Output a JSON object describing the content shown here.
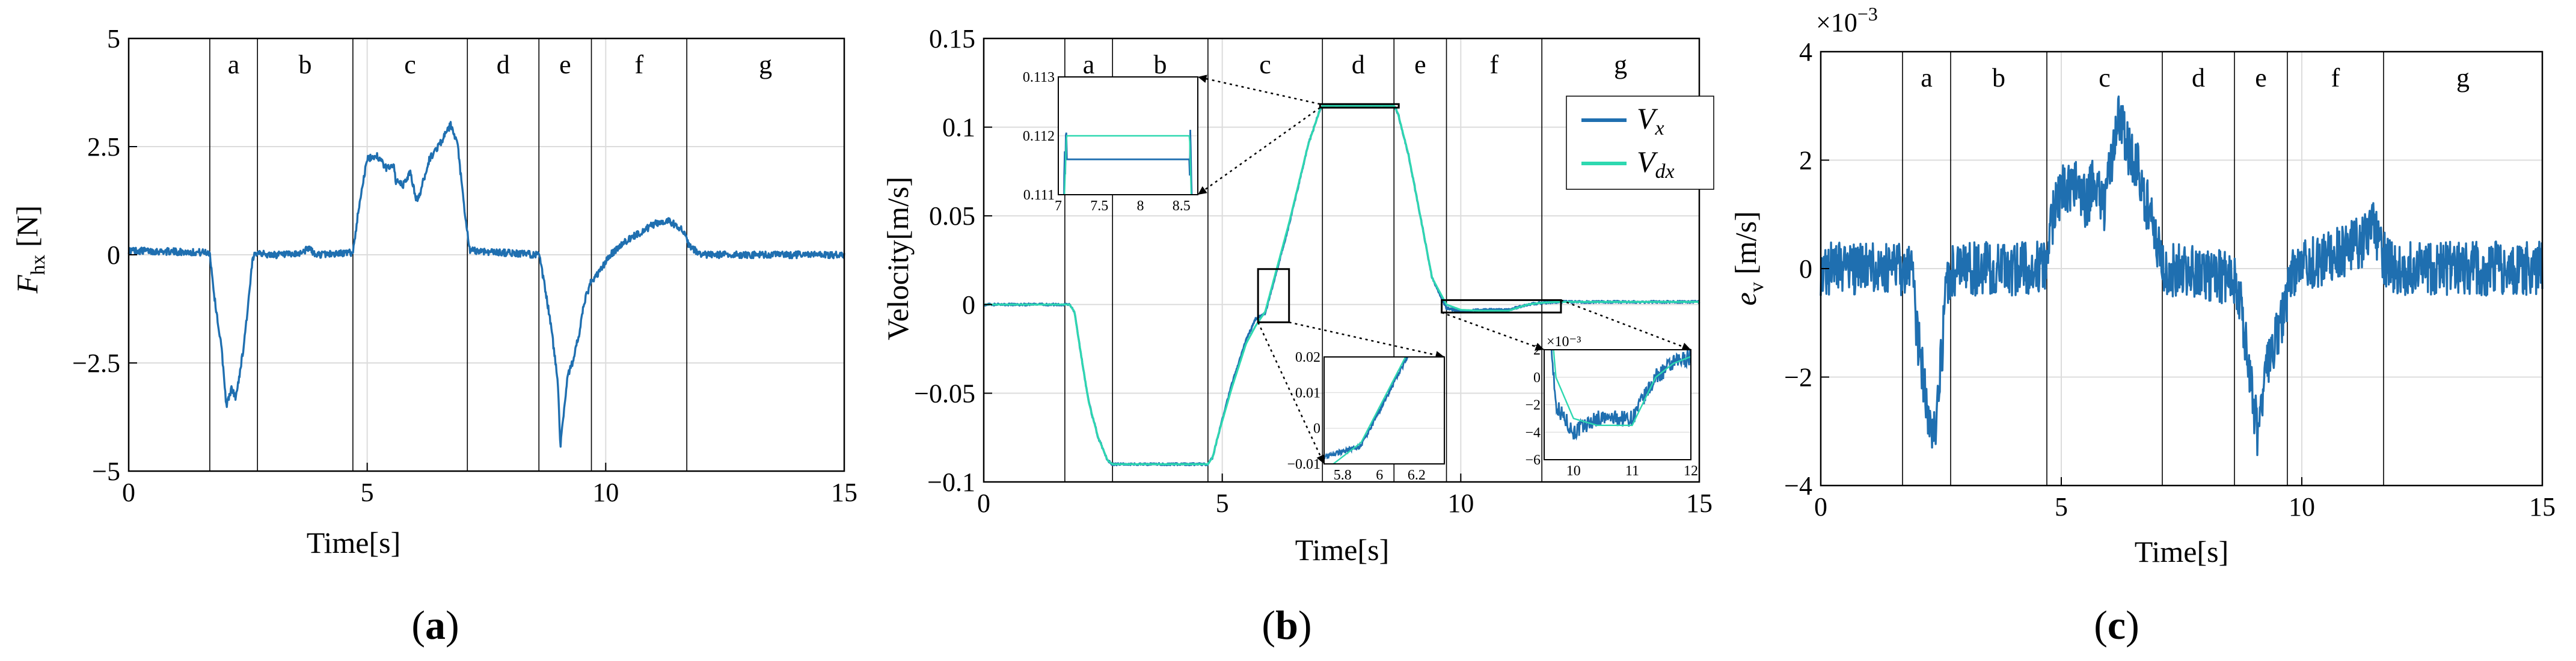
{
  "colors": {
    "measured": "#1f6fb0",
    "desired": "#2ed8b0",
    "sep": "#000000",
    "grid": "#dcdcdc"
  },
  "panels": [
    {
      "id": "a",
      "label": "(a)",
      "label_main": "a",
      "xlabel": "Time[s]",
      "ylabel_main": "F",
      "ylabel_sub": "hx",
      "ylabel_tail": " [N]",
      "xlim": [
        0,
        15
      ],
      "ylim": [
        -5,
        5
      ],
      "xticks": [
        0,
        5,
        10,
        15
      ],
      "yticks": [
        -5,
        -2.5,
        0,
        2.5,
        5
      ],
      "ytick_labels": [
        "−5",
        "−2.5",
        "0",
        "2.5",
        "5"
      ],
      "segments": [
        "a",
        "b",
        "c",
        "d",
        "e",
        "f",
        "g"
      ],
      "separators": [
        1.7,
        2.7,
        4.7,
        7.1,
        8.6,
        9.7,
        11.7
      ],
      "series": [
        {
          "name": "F_hx",
          "color_key": "measured",
          "noise": 0.08,
          "x": [
            0,
            1.7,
            1.8,
            1.95,
            2.05,
            2.15,
            2.25,
            2.4,
            2.5,
            2.6,
            2.7,
            2.85,
            3.5,
            3.8,
            3.9,
            4.7,
            4.85,
            5.0,
            5.2,
            5.4,
            5.55,
            5.6,
            5.75,
            5.9,
            6.05,
            6.3,
            6.6,
            6.75,
            6.9,
            7.05,
            7.15,
            8.6,
            8.7,
            8.85,
            9.0,
            9.05,
            9.2,
            9.3,
            9.45,
            9.55,
            9.7,
            9.8,
            10.1,
            10.4,
            10.7,
            11.0,
            11.3,
            11.6,
            11.75,
            12.0,
            15
          ],
          "y": [
            0.1,
            0.05,
            -1.0,
            -2.2,
            -3.5,
            -3.1,
            -3.3,
            -2.2,
            -1.2,
            -0.1,
            0.1,
            0.0,
            0.0,
            0.15,
            0.0,
            0.05,
            1.3,
            2.2,
            2.3,
            2.0,
            2.1,
            1.7,
            1.6,
            1.9,
            1.2,
            2.2,
            2.7,
            3.0,
            2.5,
            0.9,
            0.1,
            0.0,
            -0.6,
            -1.6,
            -3.0,
            -4.4,
            -2.8,
            -2.5,
            -1.8,
            -1.1,
            -0.6,
            -0.5,
            0.0,
            0.3,
            0.5,
            0.7,
            0.8,
            0.6,
            0.2,
            0.0,
            0.0
          ]
        }
      ]
    },
    {
      "id": "b",
      "label": "(b)",
      "label_main": "b",
      "xlabel": "Time[s]",
      "ylabel": "Velocity[m/s]",
      "xlim": [
        0,
        15
      ],
      "ylim": [
        -0.1,
        0.15
      ],
      "xticks": [
        0,
        5,
        10,
        15
      ],
      "yticks": [
        -0.1,
        -0.05,
        0,
        0.05,
        0.1,
        0.15
      ],
      "ytick_labels": [
        "−0.1",
        "−0.05",
        "0",
        "0.05",
        "0.1",
        "0.15"
      ],
      "segments": [
        "a",
        "b",
        "c",
        "d",
        "e",
        "f",
        "g"
      ],
      "separators": [
        1.7,
        2.7,
        4.7,
        7.1,
        8.6,
        9.7,
        11.7
      ],
      "legend": [
        {
          "label": "V",
          "sub": "x",
          "color_key": "measured"
        },
        {
          "label": "V",
          "sub": "dx",
          "color_key": "desired"
        }
      ],
      "series": [
        {
          "name": "V_x",
          "color_key": "measured",
          "noise": 0.0006,
          "x": [
            0,
            1.8,
            1.9,
            2.05,
            2.2,
            2.4,
            2.6,
            2.7,
            4.7,
            4.8,
            4.9,
            5.2,
            5.5,
            5.7,
            5.9,
            6.1,
            6.4,
            6.8,
            7.05,
            7.1,
            8.6,
            8.68,
            8.9,
            9.15,
            9.4,
            9.7,
            10.0,
            10.4,
            11.0,
            11.4,
            11.7,
            12.0,
            15
          ],
          "y": [
            0,
            0,
            -0.004,
            -0.03,
            -0.055,
            -0.075,
            -0.088,
            -0.09,
            -0.09,
            -0.086,
            -0.075,
            -0.045,
            -0.02,
            -0.008,
            -0.005,
            0.015,
            0.045,
            0.09,
            0.11,
            0.112,
            0.112,
            0.108,
            0.085,
            0.05,
            0.015,
            -0.002,
            -0.004,
            -0.003,
            -0.003,
            0.0,
            0.001,
            0.0015,
            0.0015
          ]
        },
        {
          "name": "V_dx",
          "color_key": "desired",
          "noise": 0,
          "x": [
            0,
            1.8,
            1.9,
            2.05,
            2.2,
            2.4,
            2.6,
            2.7,
            4.7,
            4.8,
            4.9,
            5.2,
            5.5,
            5.7,
            5.9,
            6.1,
            6.4,
            6.8,
            7.05,
            7.1,
            8.6,
            8.68,
            8.9,
            9.15,
            9.4,
            9.7,
            10.0,
            10.4,
            11.0,
            11.4,
            11.7,
            12.0,
            15
          ],
          "y": [
            0,
            0,
            -0.004,
            -0.03,
            -0.055,
            -0.075,
            -0.088,
            -0.09,
            -0.09,
            -0.086,
            -0.075,
            -0.047,
            -0.022,
            -0.012,
            -0.004,
            0.016,
            0.046,
            0.09,
            0.11,
            0.112,
            0.112,
            0.108,
            0.085,
            0.05,
            0.015,
            0.0,
            -0.003,
            -0.0035,
            -0.0035,
            0.0,
            0.001,
            0.0015,
            0.0015
          ]
        }
      ],
      "insets": [
        {
          "id": "inset1",
          "src_x": [
            7.05,
            8.7
          ],
          "src_y": [
            0.111,
            0.113
          ],
          "xlim": [
            7,
            8.7
          ],
          "ylim": [
            0.111,
            0.113
          ],
          "xticks": [
            7,
            7.5,
            8,
            8.5
          ],
          "yticks": [
            0.111,
            0.112,
            0.113
          ],
          "ytick_labels": [
            "0.111",
            "0.112",
            "0.113"
          ],
          "exp": ""
        },
        {
          "id": "inset2",
          "src_x": [
            5.75,
            6.4
          ],
          "src_y": [
            -0.01,
            0.02
          ],
          "xlim": [
            5.7,
            6.35
          ],
          "ylim": [
            -0.01,
            0.02
          ],
          "xticks": [
            5.8,
            6,
            6.2
          ],
          "yticks": [
            -0.01,
            0,
            0.01,
            0.02
          ],
          "ytick_labels": [
            "−0.01",
            "0",
            "0.01",
            "0.02"
          ],
          "exp": ""
        },
        {
          "id": "inset3",
          "src_x": [
            9.6,
            12.1
          ],
          "src_y": [
            -0.0045,
            0.0025
          ],
          "xlim": [
            9.5,
            12
          ],
          "ylim": [
            -0.006,
            0.002
          ],
          "xticks": [
            10,
            11,
            12
          ],
          "yticks": [
            -0.006,
            -0.004,
            -0.002,
            0,
            0.002
          ],
          "ytick_labels": [
            "−6",
            "−4",
            "−2",
            "0",
            "2"
          ],
          "exp": "×10⁻³"
        }
      ]
    },
    {
      "id": "c",
      "label": "(c)",
      "label_main": "c",
      "xlabel": "Time[s]",
      "ylabel_main": "e",
      "ylabel_sub": "v",
      "ylabel_tail": " [m/s]",
      "exponent_base": "×10",
      "exponent_power": "−3",
      "xlim": [
        0,
        15
      ],
      "ylim": [
        -0.004,
        0.004
      ],
      "xticks": [
        0,
        5,
        10,
        15
      ],
      "yticks": [
        -0.004,
        -0.002,
        0,
        0.002,
        0.004
      ],
      "ytick_labels": [
        "−4",
        "−2",
        "0",
        "2",
        "4"
      ],
      "segments": [
        "a",
        "b",
        "c",
        "d",
        "e",
        "f",
        "g"
      ],
      "separators": [
        1.7,
        2.7,
        4.7,
        7.1,
        8.6,
        9.7,
        11.7
      ],
      "series": [
        {
          "name": "e_v",
          "color_key": "measured",
          "noise": 0.0005,
          "x": [
            0,
            1.8,
            1.9,
            2.05,
            2.2,
            2.35,
            2.45,
            2.6,
            2.7,
            4.7,
            4.8,
            5.0,
            5.3,
            5.5,
            5.7,
            5.9,
            6.2,
            6.4,
            6.6,
            6.8,
            7.05,
            7.2,
            8.6,
            8.75,
            8.95,
            9.1,
            9.25,
            9.35,
            9.5,
            9.6,
            9.75,
            10.0,
            10.5,
            11.0,
            11.3,
            11.5,
            11.7,
            12.0,
            15
          ],
          "y": [
            0,
            0,
            -0.0002,
            -0.0015,
            -0.0026,
            -0.0032,
            -0.0024,
            -0.0005,
            0.0,
            0.0,
            0.0009,
            0.0014,
            0.0016,
            0.0012,
            0.0016,
            0.0011,
            0.0029,
            0.0022,
            0.0019,
            0.0011,
            0.0002,
            0.0,
            -0.0002,
            -0.0008,
            -0.0022,
            -0.0032,
            -0.0018,
            -0.0016,
            -0.0012,
            -0.0009,
            -0.0002,
            0.0,
            0.0002,
            0.0004,
            0.0005,
            0.0008,
            0.0002,
            0.0,
            0.0
          ]
        }
      ]
    }
  ]
}
